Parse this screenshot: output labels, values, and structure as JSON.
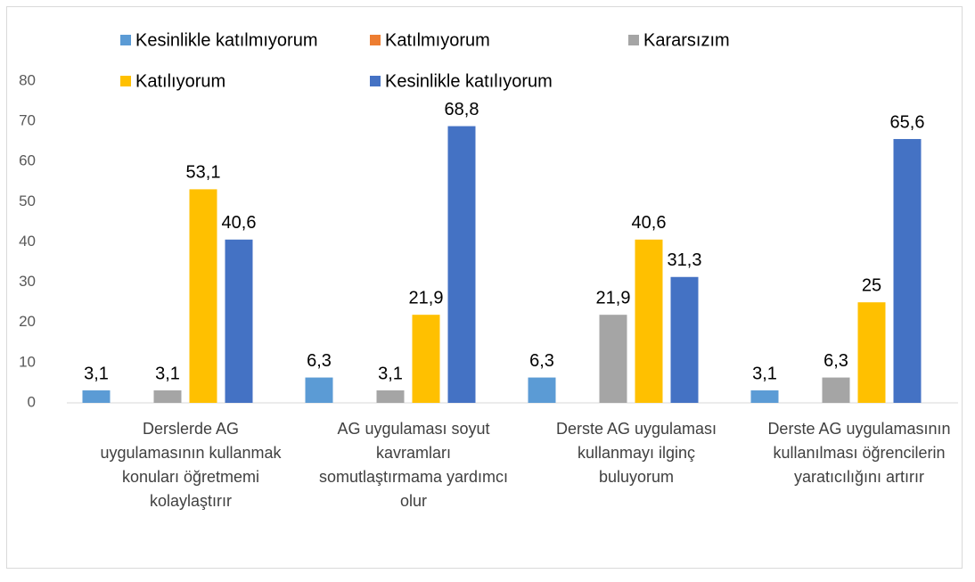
{
  "chart_data": {
    "type": "bar",
    "categories": [
      "Derslerde AG uygulamasının kullanmak konuları öğretmemi kolaylaştırır",
      "AG uygulaması soyut kavramları somutlaştırmama yardımcı olur",
      "Derste AG uygulaması kullanmayı ilginç buluyorum",
      "Derste AG uygulamasının kullanılması öğrencilerin yaratıcılığını artırır"
    ],
    "series": [
      {
        "name": "Kesinlikle katılmıyorum",
        "color": "#5b9bd5",
        "values": [
          3.1,
          6.3,
          6.3,
          3.1
        ],
        "value_labels": [
          "3,1",
          "6,3",
          "6,3",
          "3,1"
        ]
      },
      {
        "name": "Katılmıyorum",
        "color": "#ed7d31",
        "values": [
          null,
          null,
          null,
          null
        ]
      },
      {
        "name": "Kararsızım",
        "color": "#a5a5a5",
        "values": [
          3.1,
          3.1,
          21.9,
          6.3
        ],
        "value_labels": [
          "3,1",
          "3,1",
          "21,9",
          "6,3"
        ]
      },
      {
        "name": "Katılıyorum",
        "color": "#ffc000",
        "values": [
          53.1,
          21.9,
          40.6,
          25
        ],
        "value_labels": [
          "53,1",
          "21,9",
          "40,6",
          "25"
        ]
      },
      {
        "name": "Kesinlikle katılıyorum",
        "color": "#4472c4",
        "values": [
          40.6,
          68.8,
          31.3,
          65.6
        ],
        "value_labels": [
          "40,6",
          "68,8",
          "31,3",
          "65,6"
        ]
      }
    ],
    "ylim": [
      0,
      80
    ],
    "yticks": [
      0,
      10,
      20,
      30,
      40,
      50,
      60,
      70,
      80
    ],
    "grid": false
  }
}
